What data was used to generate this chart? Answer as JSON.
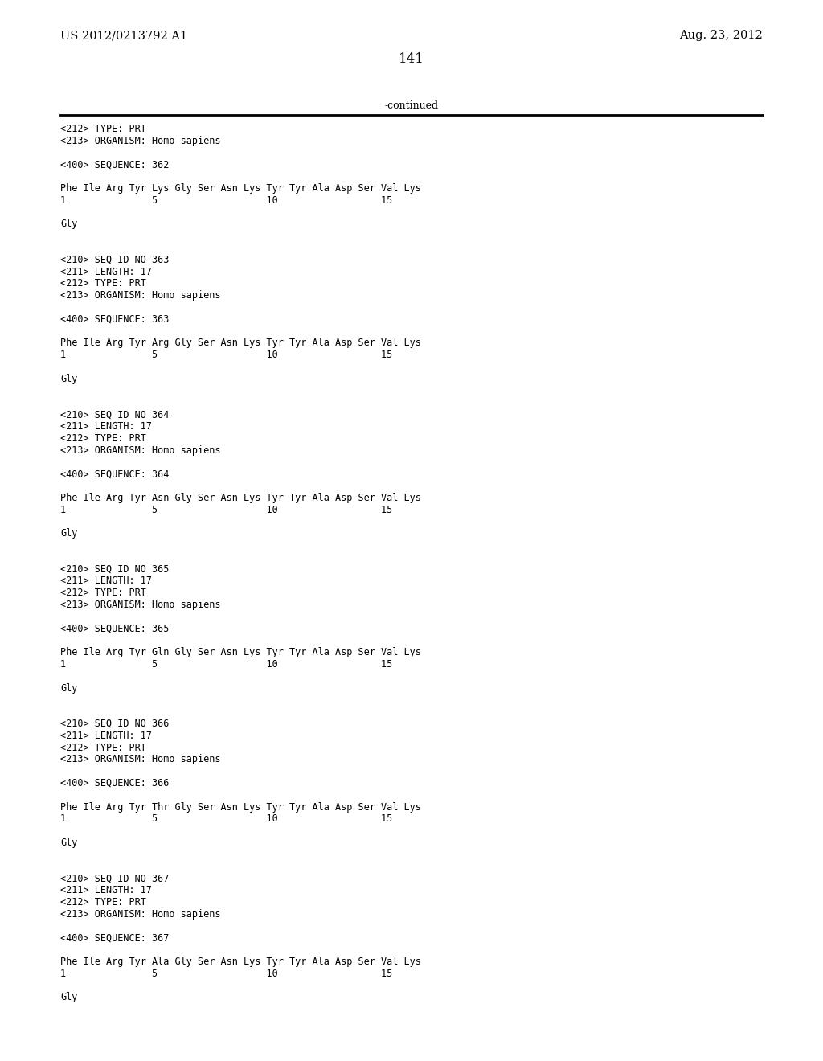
{
  "header_left": "US 2012/0213792 A1",
  "header_right": "Aug. 23, 2012",
  "page_number": "141",
  "continued_label": "-continued",
  "background_color": "#ffffff",
  "text_color": "#000000",
  "font_size_header": 10.5,
  "font_size_body": 9.0,
  "font_size_page": 12.0,
  "font_size_mono": 8.5,
  "content": [
    "<212> TYPE: PRT",
    "<213> ORGANISM: Homo sapiens",
    "",
    "<400> SEQUENCE: 362",
    "",
    "Phe Ile Arg Tyr Lys Gly Ser Asn Lys Tyr Tyr Ala Asp Ser Val Lys",
    "1               5                   10                  15",
    "",
    "Gly",
    "",
    "",
    "<210> SEQ ID NO 363",
    "<211> LENGTH: 17",
    "<212> TYPE: PRT",
    "<213> ORGANISM: Homo sapiens",
    "",
    "<400> SEQUENCE: 363",
    "",
    "Phe Ile Arg Tyr Arg Gly Ser Asn Lys Tyr Tyr Ala Asp Ser Val Lys",
    "1               5                   10                  15",
    "",
    "Gly",
    "",
    "",
    "<210> SEQ ID NO 364",
    "<211> LENGTH: 17",
    "<212> TYPE: PRT",
    "<213> ORGANISM: Homo sapiens",
    "",
    "<400> SEQUENCE: 364",
    "",
    "Phe Ile Arg Tyr Asn Gly Ser Asn Lys Tyr Tyr Ala Asp Ser Val Lys",
    "1               5                   10                  15",
    "",
    "Gly",
    "",
    "",
    "<210> SEQ ID NO 365",
    "<211> LENGTH: 17",
    "<212> TYPE: PRT",
    "<213> ORGANISM: Homo sapiens",
    "",
    "<400> SEQUENCE: 365",
    "",
    "Phe Ile Arg Tyr Gln Gly Ser Asn Lys Tyr Tyr Ala Asp Ser Val Lys",
    "1               5                   10                  15",
    "",
    "Gly",
    "",
    "",
    "<210> SEQ ID NO 366",
    "<211> LENGTH: 17",
    "<212> TYPE: PRT",
    "<213> ORGANISM: Homo sapiens",
    "",
    "<400> SEQUENCE: 366",
    "",
    "Phe Ile Arg Tyr Thr Gly Ser Asn Lys Tyr Tyr Ala Asp Ser Val Lys",
    "1               5                   10                  15",
    "",
    "Gly",
    "",
    "",
    "<210> SEQ ID NO 367",
    "<211> LENGTH: 17",
    "<212> TYPE: PRT",
    "<213> ORGANISM: Homo sapiens",
    "",
    "<400> SEQUENCE: 367",
    "",
    "Phe Ile Arg Tyr Ala Gly Ser Asn Lys Tyr Tyr Ala Asp Ser Val Lys",
    "1               5                   10                  15",
    "",
    "Gly"
  ]
}
